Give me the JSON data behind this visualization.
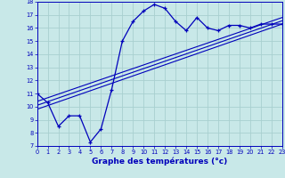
{
  "xlabel": "Graphe des températures (°c)",
  "bg_color": "#c8e8e8",
  "grid_color": "#a8d0d0",
  "line_color": "#0000bb",
  "x_data": [
    0,
    1,
    2,
    3,
    4,
    5,
    6,
    7,
    8,
    9,
    10,
    11,
    12,
    13,
    14,
    15,
    16,
    17,
    18,
    19,
    20,
    21,
    22,
    23
  ],
  "y_main": [
    11.0,
    10.3,
    8.5,
    9.3,
    9.3,
    7.3,
    8.3,
    11.3,
    15.0,
    16.5,
    17.3,
    17.8,
    17.5,
    16.5,
    15.8,
    16.8,
    16.0,
    15.8,
    16.2,
    16.2,
    16.0,
    16.3,
    16.3,
    16.3
  ],
  "trend_lines": [
    [
      [
        0,
        23
      ],
      [
        9.8,
        16.3
      ]
    ],
    [
      [
        0,
        23
      ],
      [
        10.1,
        16.55
      ]
    ],
    [
      [
        0,
        23
      ],
      [
        10.4,
        16.8
      ]
    ]
  ],
  "xlim": [
    0,
    23
  ],
  "ylim": [
    7,
    18
  ],
  "yticks": [
    7,
    8,
    9,
    10,
    11,
    12,
    13,
    14,
    15,
    16,
    17,
    18
  ],
  "xticks": [
    0,
    1,
    2,
    3,
    4,
    5,
    6,
    7,
    8,
    9,
    10,
    11,
    12,
    13,
    14,
    15,
    16,
    17,
    18,
    19,
    20,
    21,
    22,
    23
  ],
  "tick_fontsize": 4.8,
  "xlabel_fontsize": 6.5
}
